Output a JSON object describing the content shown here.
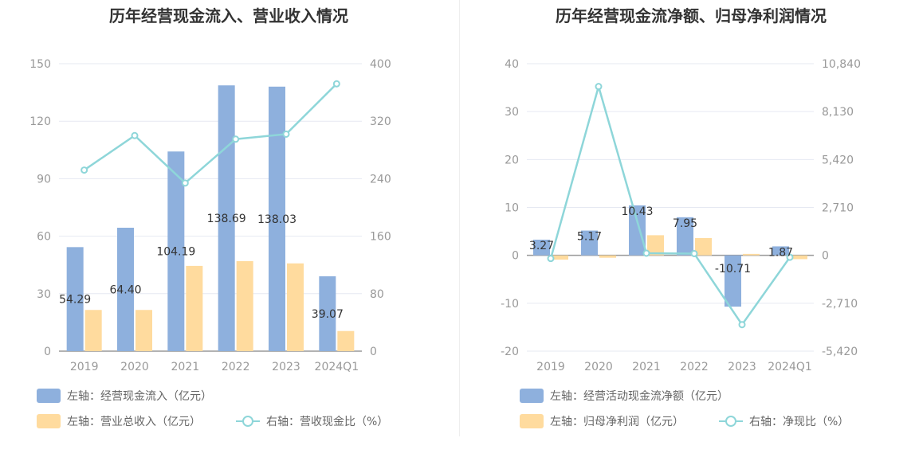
{
  "chart_data": [
    {
      "type": "bar",
      "title": "历年经营现金流入、营业收入情况",
      "categories": [
        "2019",
        "2020",
        "2021",
        "2022",
        "2023",
        "2024Q1"
      ],
      "left_axis": {
        "ticks": [
          "0",
          "30",
          "60",
          "90",
          "120",
          "150"
        ],
        "ylim": [
          0,
          150
        ]
      },
      "right_axis": {
        "ticks": [
          "0",
          "80",
          "160",
          "240",
          "320",
          "400"
        ],
        "ylim": [
          0,
          400
        ]
      },
      "series": [
        {
          "name": "左轴：经营现金流入（亿元）",
          "kind": "bar",
          "axis": "left",
          "color": "#8eb0dd",
          "values": [
            54.29,
            64.4,
            104.19,
            138.69,
            138.03,
            39.07
          ],
          "labels": [
            "54.29",
            "64.40",
            "104.19",
            "138.69",
            "138.03",
            "39.07"
          ]
        },
        {
          "name": "左轴：营业总收入（亿元）",
          "kind": "bar",
          "axis": "left",
          "color": "#ffdb9e",
          "values": [
            21.5,
            21.5,
            44.5,
            47.0,
            45.8,
            10.5
          ]
        },
        {
          "name": "右轴：营收现金比（%）",
          "kind": "line",
          "axis": "right",
          "color": "#8ed6d9",
          "values": [
            252,
            300,
            234,
            295,
            302,
            372
          ]
        }
      ]
    },
    {
      "type": "bar",
      "title": "历年经营现金流净额、归母净利润情况",
      "categories": [
        "2019",
        "2020",
        "2021",
        "2022",
        "2023",
        "2024Q1"
      ],
      "left_axis": {
        "ticks": [
          "-20",
          "-10",
          "0",
          "10",
          "20",
          "30",
          "40"
        ],
        "ylim": [
          -20,
          40
        ]
      },
      "right_axis": {
        "ticks": [
          "-5,420",
          "-2,710",
          "0",
          "2,710",
          "5,420",
          "8,130",
          "10,840"
        ],
        "ylim": [
          -5420,
          10840
        ]
      },
      "series": [
        {
          "name": "左轴：经营活动现金流净额（亿元）",
          "kind": "bar",
          "axis": "left",
          "color": "#8eb0dd",
          "values": [
            3.27,
            5.17,
            10.43,
            7.95,
            -10.71,
            1.87
          ],
          "labels": [
            "3.27",
            "5.17",
            "10.43",
            "7.95",
            "-10.71",
            "1.87"
          ]
        },
        {
          "name": "左轴：归母净利润（亿元）",
          "kind": "bar",
          "axis": "left",
          "color": "#ffdb9e",
          "values": [
            -0.9,
            -0.5,
            4.2,
            3.6,
            0.3,
            -0.8
          ]
        },
        {
          "name": "右轴：净现比（%）",
          "kind": "line",
          "axis": "right",
          "color": "#8ed6d9",
          "values": [
            -180,
            9550,
            120,
            100,
            -3920,
            -110
          ]
        }
      ]
    }
  ]
}
